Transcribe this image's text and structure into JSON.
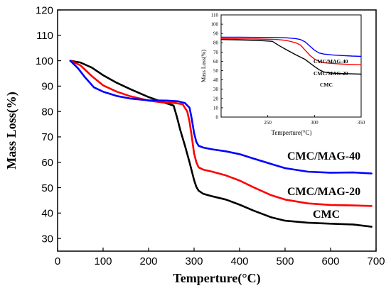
{
  "chart_data": [
    {
      "type": "line",
      "xlabel": "Temperture(°C)",
      "ylabel": "Mass Loss(%)",
      "xlim": [
        0,
        700
      ],
      "ylim": [
        25,
        120
      ],
      "xticks": [
        0,
        100,
        200,
        300,
        400,
        500,
        600,
        700
      ],
      "yticks": [
        30,
        40,
        50,
        60,
        70,
        80,
        90,
        100,
        110,
        120
      ],
      "grid": false,
      "series": [
        {
          "name": "CMC",
          "color": "#000000",
          "x": [
            28,
            50,
            75,
            100,
            130,
            160,
            200,
            230,
            255,
            262,
            270,
            280,
            290,
            300,
            305,
            310,
            320,
            340,
            370,
            400,
            430,
            470,
            500,
            550,
            600,
            650,
            690
          ],
          "y": [
            100,
            99.3,
            97.3,
            94.3,
            91.3,
            88.8,
            85.7,
            83.8,
            82.3,
            78,
            72.5,
            66.5,
            60,
            53,
            50.3,
            48.8,
            47.6,
            46.6,
            45.3,
            43.3,
            41,
            38.3,
            37,
            36.2,
            35.8,
            35.5,
            34.6
          ]
        },
        {
          "name": "CMC/MAG-20",
          "color": "#ff0000",
          "x": [
            28,
            50,
            75,
            100,
            130,
            160,
            200,
            230,
            260,
            275,
            285,
            290,
            295,
            300,
            305,
            310,
            320,
            340,
            370,
            400,
            430,
            470,
            500,
            550,
            600,
            650,
            690
          ],
          "y": [
            100,
            98.2,
            94,
            90.3,
            87.8,
            86,
            84.3,
            83.6,
            83.3,
            82.8,
            80,
            76,
            70,
            63.5,
            60,
            58,
            57.1,
            56.3,
            54.8,
            52.8,
            50.2,
            47,
            45.3,
            43.8,
            43.2,
            43,
            42.8
          ]
        },
        {
          "name": "CMC/MAG-40",
          "color": "#0000ff",
          "x": [
            28,
            45,
            60,
            80,
            100,
            130,
            160,
            200,
            240,
            265,
            280,
            290,
            295,
            300,
            305,
            310,
            320,
            340,
            370,
            400,
            430,
            470,
            500,
            550,
            600,
            650,
            690
          ],
          "y": [
            100,
            97,
            93.5,
            89.5,
            87.8,
            86.1,
            85.1,
            84.4,
            84.3,
            84,
            83.3,
            81.5,
            77,
            71.5,
            68,
            66.5,
            65.8,
            65.1,
            64.3,
            63.2,
            61.5,
            59.3,
            57.7,
            56.3,
            55.9,
            56,
            55.6
          ]
        }
      ],
      "annotations": [
        "CMC/MAG-40",
        "CMC/MAG-20",
        "CMC"
      ]
    },
    {
      "type": "line",
      "xlabel": "Temperture(°C)",
      "ylabel": "Mass Loss(%)",
      "xlim": [
        200,
        350
      ],
      "ylim": [
        0,
        110
      ],
      "xticks": [
        250,
        300,
        350
      ],
      "yticks": [
        0,
        10,
        20,
        30,
        40,
        50,
        60,
        70,
        80,
        90,
        100,
        110
      ],
      "grid": false,
      "series": [
        {
          "name": "CMC",
          "color": "#000000",
          "x": [
            200,
            220,
            240,
            255,
            262,
            270,
            280,
            290,
            300,
            305,
            310,
            315,
            320,
            330,
            340,
            350
          ],
          "y": [
            83.5,
            83,
            82.5,
            81.5,
            77,
            72.5,
            67,
            62,
            54.5,
            51,
            48.5,
            47.8,
            47.2,
            46.8,
            46.5,
            46.2
          ]
        },
        {
          "name": "CMC/MAG-20",
          "color": "#ff0000",
          "x": [
            200,
            220,
            240,
            260,
            270,
            280,
            285,
            290,
            295,
            300,
            305,
            310,
            320,
            330,
            340,
            350
          ],
          "y": [
            84.5,
            84.2,
            84,
            83.5,
            82.5,
            80,
            77.5,
            72,
            66.5,
            62.5,
            60,
            58.5,
            57.6,
            57.1,
            56.6,
            56.3
          ]
        },
        {
          "name": "CMC/MAG-40",
          "color": "#0000ff",
          "x": [
            200,
            220,
            240,
            260,
            270,
            280,
            285,
            290,
            295,
            300,
            305,
            310,
            320,
            330,
            340,
            350
          ],
          "y": [
            86,
            85.9,
            85.8,
            85.6,
            85.3,
            84.5,
            83.5,
            81,
            76.5,
            72,
            69,
            67.8,
            66.8,
            66.2,
            65.7,
            65.4
          ]
        }
      ],
      "annotations": [
        "CMC/MAG-40",
        "CMC/MAG-20",
        "CMC"
      ]
    }
  ]
}
